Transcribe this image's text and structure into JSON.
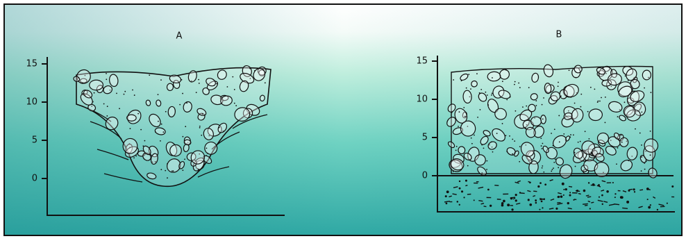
{
  "panels": [
    {
      "label": "A",
      "ticks": [
        0,
        5,
        10,
        15
      ]
    },
    {
      "label": "B",
      "ticks": [
        0,
        5,
        10,
        15
      ]
    }
  ]
}
